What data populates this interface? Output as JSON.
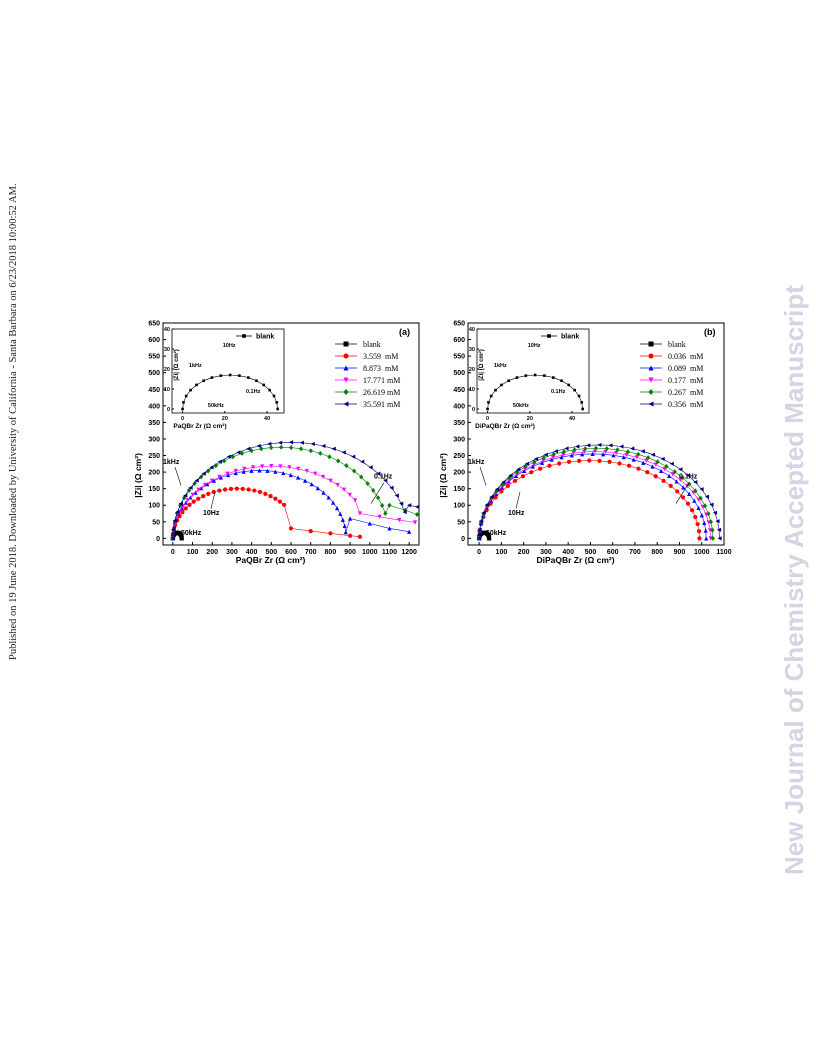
{
  "page": {
    "side_note": "Published on 19 June 2018. Downloaded by University of California - Santa Barbara on 6/23/2018 10:00:52 AM.",
    "watermark": "New Journal of Chemistry Accepted Manuscript"
  },
  "chart_data": [
    {
      "type": "scatter",
      "panel_label": "(a)",
      "xlabel": "PaQBr   Zr (Ω cm²)",
      "ylabel": "|Zi| (Ω cm²)",
      "xlim": [
        -50,
        1250
      ],
      "ylim": [
        -20,
        650
      ],
      "xticks": [
        0,
        100,
        200,
        300,
        400,
        500,
        600,
        700,
        800,
        900,
        1000,
        1100,
        1200
      ],
      "yticks": [
        0,
        50,
        100,
        150,
        200,
        250,
        300,
        350,
        400,
        450,
        500,
        550,
        600,
        650
      ],
      "legend_position": "top-right",
      "legend": [
        "blank",
        "3.559  mM",
        "8.873  mM",
        "17.771 mM",
        "26.619 mM",
        "35.591 mM"
      ],
      "series": [
        {
          "name": "blank",
          "marker": "square",
          "color": "#000000",
          "Rp": 45
        },
        {
          "name": "3.559  mM",
          "marker": "circle",
          "color": "#ff0000",
          "Rp": 650,
          "peak": 150,
          "tail": [
            [
              600,
              30
            ],
            [
              700,
              22
            ],
            [
              800,
              15
            ],
            [
              900,
              8
            ],
            [
              950,
              5
            ]
          ]
        },
        {
          "name": "8.873  mM",
          "marker": "triangle-up",
          "color": "#0000ff",
          "Rp": 880,
          "peak": 205,
          "tail": [
            [
              900,
              60
            ],
            [
              1000,
              45
            ],
            [
              1100,
              30
            ],
            [
              1200,
              20
            ]
          ]
        },
        {
          "name": "17.771 mM",
          "marker": "triangle-down",
          "color": "#ff00ff",
          "Rp": 1000,
          "peak": 218,
          "tail": [
            [
              950,
              75
            ],
            [
              1050,
              65
            ],
            [
              1150,
              55
            ],
            [
              1230,
              48
            ]
          ]
        },
        {
          "name": "26.619 mM",
          "marker": "diamond",
          "color": "#008000",
          "Rp": 1100,
          "peak": 275,
          "tail": [
            [
              1100,
              100
            ],
            [
              1180,
              85
            ],
            [
              1240,
              72
            ]
          ]
        },
        {
          "name": "35.591 mM",
          "marker": "triangle-left",
          "color": "#000080",
          "Rp": 1200,
          "peak": 290,
          "tail": [
            [
              1200,
              100
            ],
            [
              1240,
              95
            ]
          ]
        }
      ],
      "annotations": [
        "1kHz",
        "10Hz",
        "0.1Hz",
        "50kHz"
      ],
      "inset": {
        "legend": "blank",
        "xlabel": "PaQBr   Zr (Ω cm²)",
        "ylabel": "|Zi| (Ω cm²)",
        "xlim": [
          -5,
          48
        ],
        "ylim": [
          -2,
          40
        ],
        "xticks": [
          0,
          20,
          40
        ],
        "yticks": [
          0,
          10,
          20,
          30,
          40
        ],
        "Rp": 45,
        "peak": 17,
        "annotations": [
          "1kHz",
          "10Hz",
          "0.1Hz",
          "50kHz"
        ]
      }
    },
    {
      "type": "scatter",
      "panel_label": "(b)",
      "xlabel": "DiPaQBr   Zr (Ω cm²)",
      "ylabel": "|Zi| (Ω cm²)",
      "xlim": [
        -50,
        1100
      ],
      "ylim": [
        -20,
        650
      ],
      "xticks": [
        0,
        100,
        200,
        300,
        400,
        500,
        600,
        700,
        800,
        900,
        1000,
        1100
      ],
      "yticks": [
        0,
        50,
        100,
        150,
        200,
        250,
        300,
        350,
        400,
        450,
        500,
        550,
        600,
        650
      ],
      "legend_position": "top-right",
      "legend": [
        "blank",
        "0.036  mM",
        "0.089  mM",
        "0.177  mM",
        "0.267  mM",
        "0.356  mM"
      ],
      "series": [
        {
          "name": "blank",
          "marker": "square",
          "color": "#000000",
          "Rp": 45
        },
        {
          "name": "0.036  mM",
          "marker": "circle",
          "color": "#ff0000",
          "Rp": 990,
          "peak": 235
        },
        {
          "name": "0.089  mM",
          "marker": "triangle-up",
          "color": "#0000ff",
          "Rp": 1020,
          "peak": 255
        },
        {
          "name": "0.177  mM",
          "marker": "triangle-down",
          "color": "#ff00ff",
          "Rp": 1040,
          "peak": 262
        },
        {
          "name": "0.267  mM",
          "marker": "diamond",
          "color": "#008000",
          "Rp": 1050,
          "peak": 272
        },
        {
          "name": "0.356  mM",
          "marker": "triangle-left",
          "color": "#000080",
          "Rp": 1080,
          "peak": 282
        }
      ],
      "annotations": [
        "1kHz",
        "10Hz",
        "0.1Hz",
        "50kHz"
      ],
      "inset": {
        "legend": "blank",
        "xlabel": "DiPaQBr   Zr (Ω cm²)",
        "ylabel": "|Zi| (Ω cm²)",
        "xlim": [
          -5,
          48
        ],
        "ylim": [
          -2,
          40
        ],
        "xticks": [
          0,
          20,
          40
        ],
        "yticks": [
          0,
          10,
          20,
          30,
          40
        ],
        "Rp": 45,
        "peak": 17,
        "annotations": [
          "1kHz",
          "10Hz",
          "0.1Hz",
          "50kHz"
        ]
      }
    }
  ]
}
